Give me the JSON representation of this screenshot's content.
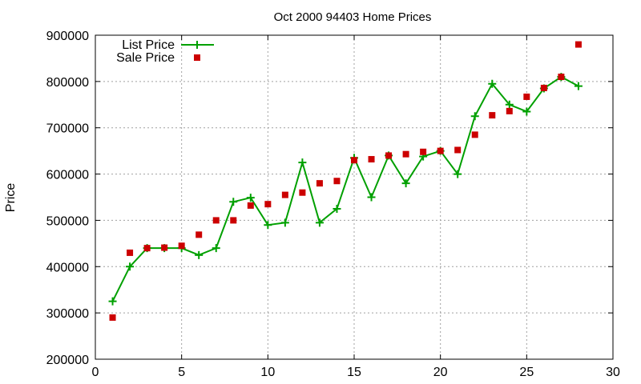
{
  "chart_data": {
    "type": "line",
    "title": "Oct 2000 94403 Home Prices",
    "xlabel": "",
    "ylabel": "Price",
    "xlim": [
      0,
      30
    ],
    "ylim": [
      200000,
      900000
    ],
    "xticks": [
      0,
      5,
      10,
      15,
      20,
      25,
      30
    ],
    "yticks": [
      200000,
      300000,
      400000,
      500000,
      600000,
      700000,
      800000,
      900000
    ],
    "grid": true,
    "legend": "top-left",
    "x": [
      1,
      2,
      3,
      4,
      5,
      6,
      7,
      8,
      9,
      10,
      11,
      12,
      13,
      14,
      15,
      16,
      17,
      18,
      19,
      20,
      21,
      22,
      23,
      24,
      25,
      26,
      27,
      28
    ],
    "series": [
      {
        "name": "List Price",
        "style": "linespoints",
        "color": "#00a000",
        "values": [
          325000,
          400000,
          440000,
          440000,
          440000,
          425000,
          440000,
          540000,
          549000,
          490000,
          495000,
          625000,
          495000,
          525000,
          635000,
          550000,
          640000,
          580000,
          638000,
          650000,
          600000,
          725000,
          795000,
          750000,
          735000,
          785000,
          810000,
          790000
        ]
      },
      {
        "name": "Sale Price",
        "style": "points",
        "color": "#cc0000",
        "values": [
          290000,
          430000,
          440000,
          441000,
          445000,
          469000,
          500000,
          500000,
          532000,
          535000,
          555000,
          560000,
          580000,
          585000,
          630000,
          632000,
          640000,
          643000,
          648000,
          650000,
          652000,
          685000,
          727000,
          736000,
          767000,
          786000,
          810000,
          880000
        ]
      }
    ]
  }
}
